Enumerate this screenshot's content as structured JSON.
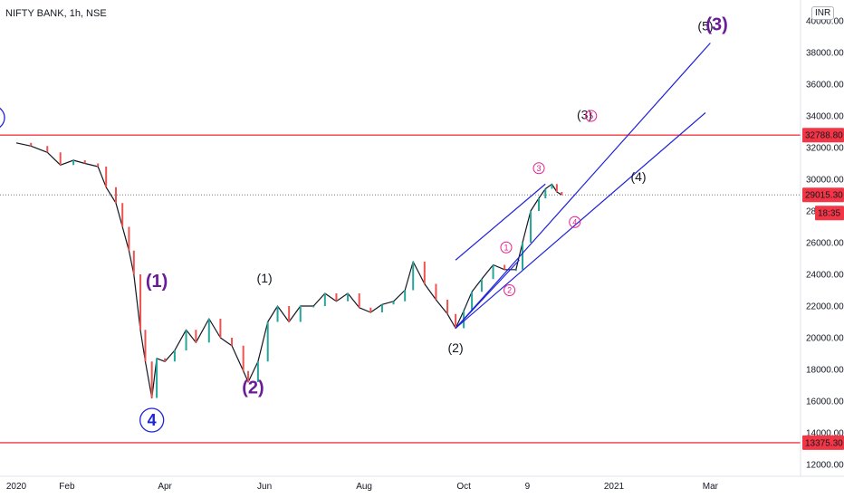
{
  "header": {
    "symbol": "NIFTY BANK, 1h, NSE",
    "currency_badge": "INR"
  },
  "colors": {
    "candle_up": "#26a69a",
    "candle_down": "#ef5350",
    "price_line": "#131722",
    "resistance": "#f23645",
    "channel": "#1e22d8",
    "wave_purple": "#6a1b9a",
    "wave_blue": "#1e22d8",
    "wave_pink": "#e91e8c",
    "wave_black": "#131722",
    "price_tag_red": "#f23645"
  },
  "chart_data": {
    "type": "line",
    "title": "NIFTY BANK, 1h, NSE",
    "x_tick_labels": [
      "2020",
      "Feb",
      "Apr",
      "Jun",
      "Aug",
      "Oct",
      "9",
      "2021",
      "Mar"
    ],
    "y_tick_labels": [
      "12000.00",
      "14000.00",
      "16000.00",
      "18000.00",
      "20000.00",
      "22000.00",
      "24000.00",
      "26000.00",
      "28000.00",
      "30000.00",
      "32000.00",
      "34000.00",
      "36000.00",
      "38000.00",
      "40000.00"
    ],
    "ylim": [
      12000,
      41000
    ],
    "price_series": [
      [
        "2020-01-01",
        32300
      ],
      [
        "2020-01-10",
        32100
      ],
      [
        "2020-01-20",
        31700
      ],
      [
        "2020-01-28",
        30900
      ],
      [
        "2020-02-05",
        31200
      ],
      [
        "2020-02-12",
        31000
      ],
      [
        "2020-02-20",
        30800
      ],
      [
        "2020-02-25",
        29500
      ],
      [
        "2020-03-02",
        28500
      ],
      [
        "2020-03-06",
        27000
      ],
      [
        "2020-03-10",
        25500
      ],
      [
        "2020-03-13",
        24000
      ],
      [
        "2020-03-17",
        20500
      ],
      [
        "2020-03-20",
        18500
      ],
      [
        "2020-03-24",
        16200
      ],
      [
        "2020-03-27",
        18700
      ],
      [
        "2020-04-01",
        18500
      ],
      [
        "2020-04-07",
        19200
      ],
      [
        "2020-04-14",
        20500
      ],
      [
        "2020-04-20",
        19700
      ],
      [
        "2020-04-28",
        21200
      ],
      [
        "2020-05-05",
        20000
      ],
      [
        "2020-05-12",
        19500
      ],
      [
        "2020-05-19",
        17900
      ],
      [
        "2020-05-22",
        17200
      ],
      [
        "2020-05-28",
        18500
      ],
      [
        "2020-06-03",
        21000
      ],
      [
        "2020-06-09",
        22000
      ],
      [
        "2020-06-16",
        21000
      ],
      [
        "2020-06-23",
        22000
      ],
      [
        "2020-07-01",
        22000
      ],
      [
        "2020-07-08",
        22800
      ],
      [
        "2020-07-15",
        22300
      ],
      [
        "2020-07-22",
        22800
      ],
      [
        "2020-07-29",
        21900
      ],
      [
        "2020-08-05",
        21600
      ],
      [
        "2020-08-12",
        22100
      ],
      [
        "2020-08-19",
        22300
      ],
      [
        "2020-08-26",
        23000
      ],
      [
        "2020-08-31",
        24800
      ],
      [
        "2020-09-07",
        23400
      ],
      [
        "2020-09-14",
        22400
      ],
      [
        "2020-09-21",
        21500
      ],
      [
        "2020-09-26",
        20600
      ],
      [
        "2020-10-01",
        21700
      ],
      [
        "2020-10-06",
        22900
      ],
      [
        "2020-10-12",
        23700
      ],
      [
        "2020-10-19",
        24600
      ],
      [
        "2020-10-26",
        24300
      ],
      [
        "2020-11-02",
        24300
      ],
      [
        "2020-11-06",
        26000
      ],
      [
        "2020-11-11",
        28000
      ],
      [
        "2020-11-16",
        28800
      ],
      [
        "2020-11-20",
        29400
      ],
      [
        "2020-11-24",
        29700
      ],
      [
        "2020-11-27",
        29200
      ],
      [
        "2020-11-30",
        29015
      ]
    ],
    "horizontal_levels": [
      {
        "price": 32788.8,
        "label": "32788.80"
      },
      {
        "price": 13375.3,
        "label": "13375.30"
      }
    ],
    "current_price": {
      "value": 29015.3,
      "label": "29015.30",
      "countdown": "18:35"
    },
    "channel_lines": [
      {
        "from": [
          "2020-09-26",
          20600
        ],
        "to": [
          "2021-03-01",
          38600
        ]
      },
      {
        "from": [
          "2020-09-26",
          20600
        ],
        "to": [
          "2020-11-04",
          24900
        ]
      },
      {
        "from": [
          "2020-09-26",
          20600
        ],
        "to": [
          "2021-02-26",
          34200
        ]
      },
      {
        "from": [
          "2020-09-26",
          24900
        ],
        "to": [
          "2020-11-20",
          29700
        ]
      }
    ],
    "wave_labels": [
      {
        "text": "(1)",
        "date": "2020-03-27",
        "price": 23200,
        "style": "purple"
      },
      {
        "text": "(2)",
        "date": "2020-05-25",
        "price": 16500,
        "style": "purple"
      },
      {
        "text": "(1)",
        "date": "2020-06-01",
        "price": 23500,
        "style": "black"
      },
      {
        "text": "(2)",
        "date": "2020-09-26",
        "price": 19100,
        "style": "black"
      },
      {
        "text": "(3)",
        "date": "2020-12-14",
        "price": 33800,
        "style": "black"
      },
      {
        "text": "(4)",
        "date": "2021-01-16",
        "price": 29900,
        "style": "black"
      },
      {
        "text": "(5)",
        "date": "2021-02-26",
        "price": 39400,
        "style": "black"
      },
      {
        "text": "(3)",
        "date": "2021-03-05",
        "price": 39400,
        "style": "purple"
      },
      {
        "text": "4",
        "date": "2020-03-24",
        "price": 14800,
        "style": "circle-blue"
      },
      {
        "text": "1",
        "date": "2020-10-27",
        "price": 25700,
        "style": "circle-pink"
      },
      {
        "text": "2",
        "date": "2020-10-29",
        "price": 23000,
        "style": "circle-pink"
      },
      {
        "text": "3",
        "date": "2020-11-16",
        "price": 30700,
        "style": "circle-pink"
      },
      {
        "text": "4",
        "date": "2020-12-08",
        "price": 27300,
        "style": "circle-pink"
      },
      {
        "text": "5",
        "date": "2020-12-18",
        "price": 34000,
        "style": "circle-pink"
      }
    ]
  }
}
